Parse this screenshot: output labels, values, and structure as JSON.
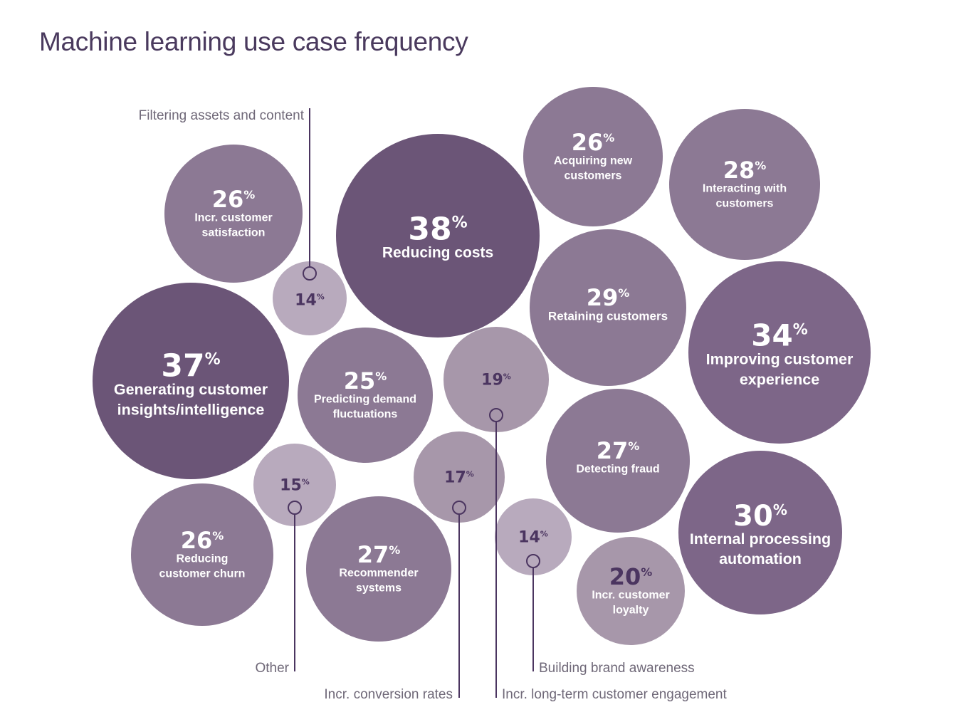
{
  "chart_data": {
    "type": "bubble",
    "title": "Machine learning use case frequency",
    "colors": {
      "dark": "#6b5577",
      "mid_dark": "#7d6688",
      "mid": "#8c7994",
      "light": "#a797aa",
      "lighter": "#b8aabd",
      "label_dark": "#4b3560",
      "leader": "#4b3560"
    },
    "bubbles": [
      {
        "label": "Reducing costs",
        "value": 38,
        "value_text": "38%"
      },
      {
        "label": "Generating customer insights/intelligence",
        "value": 37,
        "value_text": "37%"
      },
      {
        "label": "Improving customer experience",
        "value": 34,
        "value_text": "34%"
      },
      {
        "label": "Internal processing automation",
        "value": 30,
        "value_text": "30%"
      },
      {
        "label": "Retaining customers",
        "value": 29,
        "value_text": "29%"
      },
      {
        "label": "Interacting with customers",
        "value": 28,
        "value_text": "28%"
      },
      {
        "label": "Detecting fraud",
        "value": 27,
        "value_text": "27%"
      },
      {
        "label": "Recommender systems",
        "value": 27,
        "value_text": "27%"
      },
      {
        "label": "Incr. customer satisfaction",
        "value": 26,
        "value_text": "26%"
      },
      {
        "label": "Acquiring new customers",
        "value": 26,
        "value_text": "26%"
      },
      {
        "label": "Reducing customer churn",
        "value": 26,
        "value_text": "26%"
      },
      {
        "label": "Predicting demand fluctuations",
        "value": 25,
        "value_text": "25%"
      },
      {
        "label": "Incr. customer loyalty",
        "value": 20,
        "value_text": "20%"
      },
      {
        "label": "Incr. long-term customer engagement",
        "value": 19,
        "value_text": "19%"
      },
      {
        "label": "Incr. conversion rates",
        "value": 17,
        "value_text": "17%"
      },
      {
        "label": "Other",
        "value": 15,
        "value_text": "15%"
      },
      {
        "label": "Filtering assets and content",
        "value": 14,
        "value_text": "14%"
      },
      {
        "label": "Building brand awareness",
        "value": 14,
        "value_text": "14%"
      }
    ]
  }
}
